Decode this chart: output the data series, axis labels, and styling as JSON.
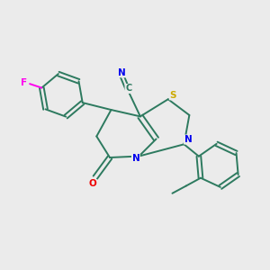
{
  "bg_color": "#ebebeb",
  "bond_color": "#2d7a5f",
  "atom_colors": {
    "F": "#ff00ee",
    "N": "#0000ee",
    "O": "#ee0000",
    "S": "#ccaa00",
    "C": "#2d7a5f"
  },
  "figsize": [
    3.0,
    3.0
  ],
  "dpi": 100,
  "lw": 1.4,
  "label_fontsize": 7.5
}
